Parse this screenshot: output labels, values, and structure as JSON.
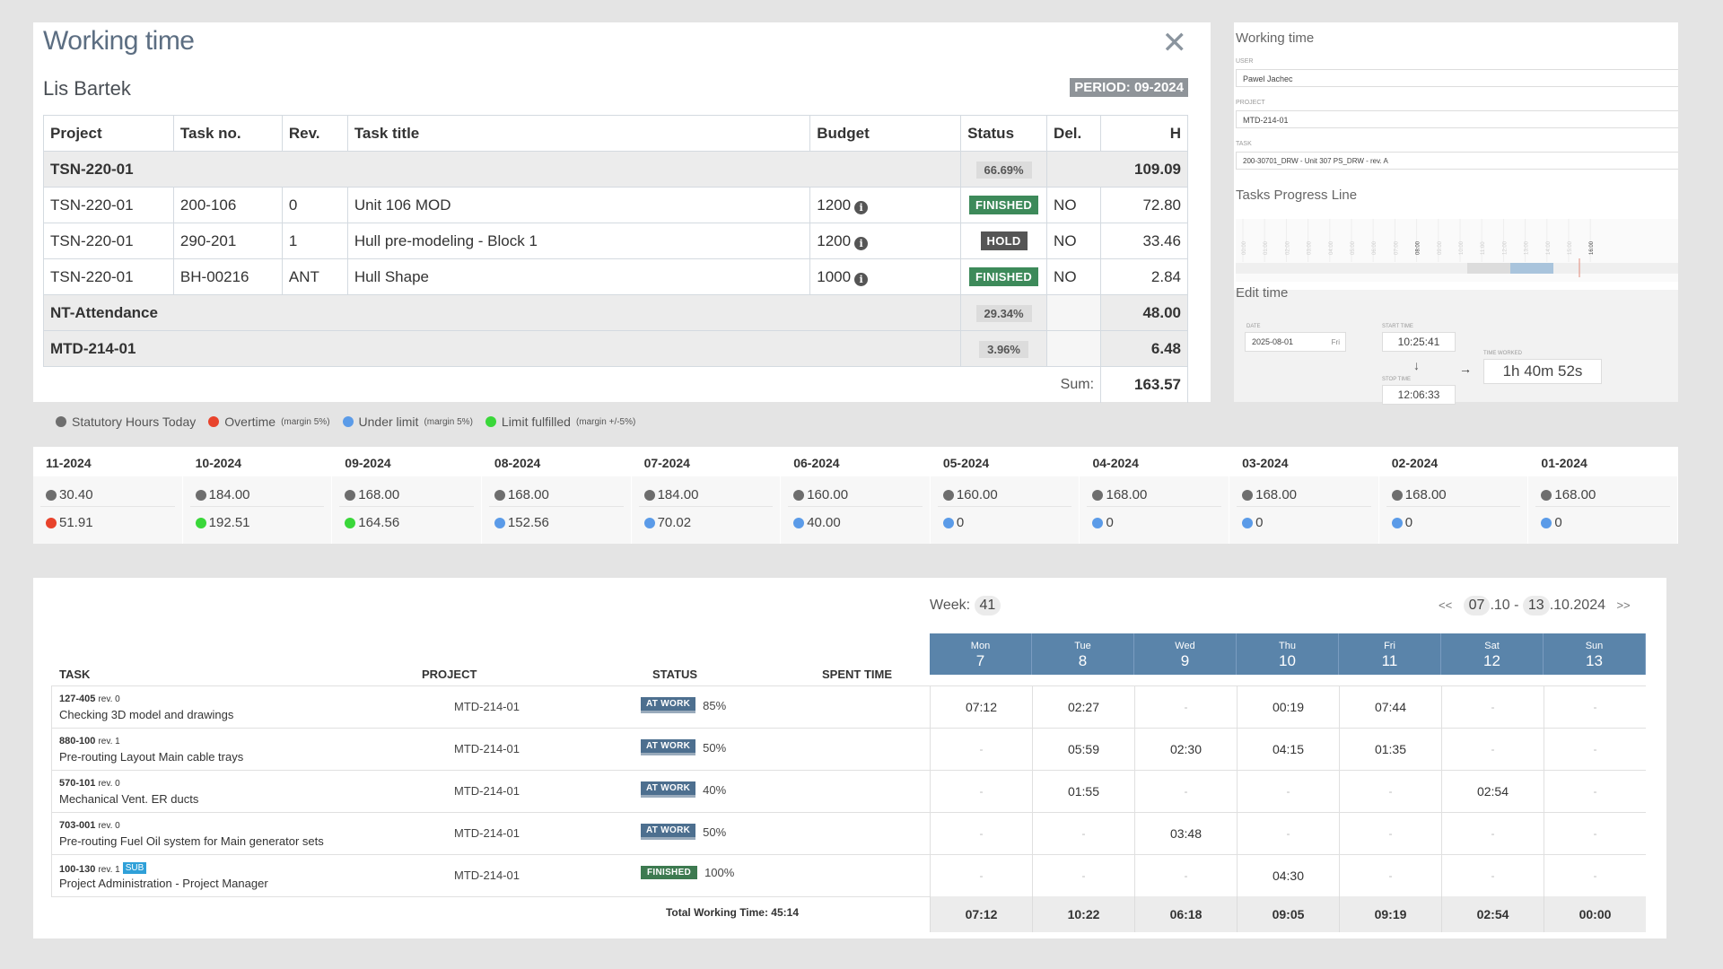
{
  "main_panel": {
    "title": "Working time",
    "user_name": "Lis Bartek",
    "period": "PERIOD: 09-2024",
    "columns": [
      "Project",
      "Task no.",
      "Rev.",
      "Task title",
      "Budget",
      "Status",
      "Del.",
      "H"
    ],
    "groups": [
      {
        "project": "TSN-220-01",
        "pct": "66.69%",
        "hours": "109.09"
      },
      {
        "project": "NT-Attendance",
        "pct": "29.34%",
        "hours": "48.00"
      },
      {
        "project": "MTD-214-01",
        "pct": "3.96%",
        "hours": "6.48"
      }
    ],
    "rows": [
      {
        "project": "TSN-220-01",
        "task_no": "200-106",
        "rev": "0",
        "title": "Unit 106 MOD",
        "budget": "1200",
        "status": "FINISHED",
        "del": "NO",
        "hours": "72.80"
      },
      {
        "project": "TSN-220-01",
        "task_no": "290-201",
        "rev": "1",
        "title": "Hull pre-modeling - Block 1",
        "budget": "1200",
        "status": "HOLD",
        "del": "NO",
        "hours": "33.46"
      },
      {
        "project": "TSN-220-01",
        "task_no": "BH-00216",
        "rev": "ANT",
        "title": "Hull Shape",
        "budget": "1000",
        "status": "FINISHED",
        "del": "NO",
        "hours": "2.84"
      }
    ],
    "sum_label": "Sum:",
    "sum_value": "163.57"
  },
  "side_panel": {
    "title": "Working time",
    "user_label": "USER",
    "user_value": "Pawel Jachec",
    "project_label": "PROJECT",
    "project_value": "MTD-214-01",
    "task_label": "TASK",
    "task_value": "200-30701_DRW - Unit 307 PS_DRW - rev. A",
    "progress_title": "Tasks Progress Line",
    "timeline_ticks": [
      "00:00",
      "01:00",
      "02:00",
      "03:00",
      "04:00",
      "05:00",
      "06:00",
      "07:00",
      "08:00",
      "09:00",
      "10:00",
      "11:00",
      "12:00",
      "13:00",
      "14:00",
      "15:00",
      "16:00"
    ],
    "edit_title": "Edit time",
    "date_label": "DATE",
    "date_value": "2025-08-01",
    "date_day": "Fri",
    "start_label": "START TIME",
    "start_value": "10:25:41",
    "stop_label": "STOP TIME",
    "stop_value": "12:06:33",
    "worked_label": "TIME WORKED",
    "worked_value": "1h 40m 52s"
  },
  "legend": [
    {
      "label": "Statutory Hours Today",
      "note": "",
      "color": "#6e6e6e"
    },
    {
      "label": "Overtime",
      "note": "(margin 5%)",
      "color": "#e8432c"
    },
    {
      "label": "Under limit",
      "note": "(margin 5%)",
      "color": "#5b9be8"
    },
    {
      "label": "Limit fulfilled",
      "note": "(margin +/-5%)",
      "color": "#3ad73a"
    }
  ],
  "months": [
    {
      "name": "11-2024",
      "statutory": "30.40",
      "actual": "51.91",
      "status": "overtime"
    },
    {
      "name": "10-2024",
      "statutory": "184.00",
      "actual": "192.51",
      "status": "fulfilled"
    },
    {
      "name": "09-2024",
      "statutory": "168.00",
      "actual": "164.56",
      "status": "fulfilled"
    },
    {
      "name": "08-2024",
      "statutory": "168.00",
      "actual": "152.56",
      "status": "under"
    },
    {
      "name": "07-2024",
      "statutory": "184.00",
      "actual": "70.02",
      "status": "under"
    },
    {
      "name": "06-2024",
      "statutory": "160.00",
      "actual": "40.00",
      "status": "under"
    },
    {
      "name": "05-2024",
      "statutory": "160.00",
      "actual": "0",
      "status": "under"
    },
    {
      "name": "04-2024",
      "statutory": "168.00",
      "actual": "0",
      "status": "under"
    },
    {
      "name": "03-2024",
      "statutory": "168.00",
      "actual": "0",
      "status": "under"
    },
    {
      "name": "02-2024",
      "statutory": "168.00",
      "actual": "0",
      "status": "under"
    },
    {
      "name": "01-2024",
      "statutory": "168.00",
      "actual": "0",
      "status": "under"
    }
  ],
  "weekly": {
    "week_label": "Week:",
    "week_number": "41",
    "prev": "<<",
    "next": ">>",
    "range_start_day": "07",
    "range_start_rest": ".10 -",
    "range_end_day": "13",
    "range_end_rest": ".10.2024",
    "col_task": "TASK",
    "col_project": "PROJECT",
    "col_status": "STATUS",
    "col_spent": "SPENT TIME",
    "days": [
      {
        "name": "Mon",
        "num": "7"
      },
      {
        "name": "Tue",
        "num": "8"
      },
      {
        "name": "Wed",
        "num": "9"
      },
      {
        "name": "Thu",
        "num": "10"
      },
      {
        "name": "Fri",
        "num": "11"
      },
      {
        "name": "Sat",
        "num": "12"
      },
      {
        "name": "Sun",
        "num": "13"
      }
    ],
    "tasks": [
      {
        "num": "127-405",
        "rev": "rev. 0",
        "sub": "",
        "name": "Checking 3D model and drawings",
        "project": "MTD-214-01",
        "status": "AT WORK",
        "pct": "85%",
        "times": [
          "07:12",
          "02:27",
          "-",
          "00:19",
          "07:44",
          "-",
          "-"
        ]
      },
      {
        "num": "880-100",
        "rev": "rev. 1",
        "sub": "",
        "name": "Pre-routing Layout Main cable trays",
        "project": "MTD-214-01",
        "status": "AT WORK",
        "pct": "50%",
        "times": [
          "-",
          "05:59",
          "02:30",
          "04:15",
          "01:35",
          "-",
          "-"
        ]
      },
      {
        "num": "570-101",
        "rev": "rev. 0",
        "sub": "",
        "name": "Mechanical Vent. ER ducts",
        "project": "MTD-214-01",
        "status": "AT WORK",
        "pct": "40%",
        "times": [
          "-",
          "01:55",
          "-",
          "-",
          "-",
          "02:54",
          "-"
        ]
      },
      {
        "num": "703-001",
        "rev": "rev. 0",
        "sub": "",
        "name": "Pre-routing Fuel Oil system for Main generator sets",
        "project": "MTD-214-01",
        "status": "AT WORK",
        "pct": "50%",
        "times": [
          "-",
          "-",
          "03:48",
          "-",
          "-",
          "-",
          "-"
        ]
      },
      {
        "num": "100-130",
        "rev": "rev. 1",
        "sub": "SUB",
        "name": "Project Administration - Project Manager",
        "project": "MTD-214-01",
        "status": "FINISHED",
        "pct": "100%",
        "times": [
          "-",
          "-",
          "-",
          "04:30",
          "-",
          "-",
          "-"
        ]
      }
    ],
    "total_label": "Total Working Time: 45:14",
    "totals": [
      "07:12",
      "10:22",
      "06:18",
      "09:05",
      "09:19",
      "02:54",
      "00:00"
    ]
  }
}
